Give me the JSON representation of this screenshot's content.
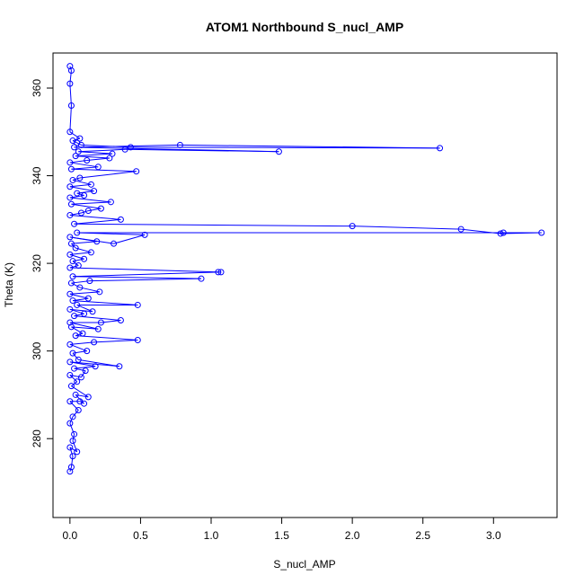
{
  "chart_data": {
    "type": "line",
    "title": "ATOM1 Northbound S_nucl_AMP",
    "xlabel": "S_nucl_AMP",
    "ylabel": "Theta (K)",
    "xlim": [
      -0.12,
      3.45
    ],
    "ylim": [
      262,
      368
    ],
    "xticks": [
      0.0,
      0.5,
      1.0,
      1.5,
      2.0,
      2.5,
      3.0
    ],
    "xtick_labels": [
      "0.0",
      "0.5",
      "1.0",
      "1.5",
      "2.0",
      "2.5",
      "3.0"
    ],
    "yticks": [
      280,
      300,
      320,
      340,
      360
    ],
    "ytick_labels": [
      "280",
      "300",
      "320",
      "340",
      "360"
    ],
    "grid": false,
    "legend": "none",
    "series_color": "#0000ff",
    "marker": "open-circle",
    "series": [
      {
        "points": [
          [
            0.0,
            272.5
          ],
          [
            0.01,
            273.5
          ],
          [
            0.02,
            276.0
          ],
          [
            0.0,
            278.0
          ],
          [
            0.05,
            277.0
          ],
          [
            0.02,
            279.5
          ],
          [
            0.03,
            281.0
          ],
          [
            0.0,
            283.5
          ],
          [
            0.02,
            285.0
          ],
          [
            0.06,
            286.5
          ],
          [
            0.0,
            288.5
          ],
          [
            0.07,
            288.5
          ],
          [
            0.1,
            288.0
          ],
          [
            0.04,
            290.0
          ],
          [
            0.13,
            289.5
          ],
          [
            0.01,
            292.0
          ],
          [
            0.05,
            293.0
          ],
          [
            0.0,
            294.5
          ],
          [
            0.08,
            294.0
          ],
          [
            0.11,
            295.5
          ],
          [
            0.03,
            296.0
          ],
          [
            0.18,
            296.5
          ],
          [
            0.0,
            297.5
          ],
          [
            0.35,
            296.5
          ],
          [
            0.06,
            298.0
          ],
          [
            0.02,
            299.5
          ],
          [
            0.12,
            300.0
          ],
          [
            0.0,
            301.5
          ],
          [
            0.17,
            302.0
          ],
          [
            0.48,
            302.5
          ],
          [
            0.04,
            303.5
          ],
          [
            0.09,
            304.0
          ],
          [
            0.01,
            305.5
          ],
          [
            0.2,
            305.0
          ],
          [
            0.0,
            306.5
          ],
          [
            0.22,
            306.5
          ],
          [
            0.36,
            307.0
          ],
          [
            0.03,
            308.0
          ],
          [
            0.1,
            308.5
          ],
          [
            0.0,
            309.5
          ],
          [
            0.16,
            309.0
          ],
          [
            0.05,
            310.5
          ],
          [
            0.48,
            310.5
          ],
          [
            0.02,
            311.5
          ],
          [
            0.13,
            312.0
          ],
          [
            0.0,
            313.0
          ],
          [
            0.21,
            313.5
          ],
          [
            0.07,
            314.5
          ],
          [
            0.01,
            315.5
          ],
          [
            0.14,
            316.0
          ],
          [
            0.93,
            316.5
          ],
          [
            0.02,
            317.0
          ],
          [
            1.05,
            318.0
          ],
          [
            1.07,
            318.0
          ],
          [
            0.0,
            319.0
          ],
          [
            0.06,
            319.5
          ],
          [
            0.02,
            320.5
          ],
          [
            0.1,
            321.0
          ],
          [
            0.0,
            322.0
          ],
          [
            0.15,
            322.5
          ],
          [
            0.04,
            323.5
          ],
          [
            0.01,
            324.5
          ],
          [
            0.19,
            325.0
          ],
          [
            0.0,
            326.0
          ],
          [
            0.31,
            324.5
          ],
          [
            0.53,
            326.5
          ],
          [
            0.05,
            327.0
          ],
          [
            3.07,
            327.0
          ],
          [
            3.34,
            327.0
          ],
          [
            3.05,
            326.8
          ],
          [
            2.77,
            327.8
          ],
          [
            2.0,
            328.5
          ],
          [
            0.03,
            329.0
          ],
          [
            0.36,
            330.0
          ],
          [
            0.0,
            331.0
          ],
          [
            0.08,
            331.5
          ],
          [
            0.13,
            332.0
          ],
          [
            0.22,
            332.5
          ],
          [
            0.01,
            333.5
          ],
          [
            0.29,
            334.0
          ],
          [
            0.0,
            335.0
          ],
          [
            0.1,
            335.5
          ],
          [
            0.05,
            336.0
          ],
          [
            0.17,
            336.5
          ],
          [
            0.0,
            337.5
          ],
          [
            0.15,
            338.0
          ],
          [
            0.02,
            339.0
          ],
          [
            0.07,
            339.5
          ],
          [
            0.47,
            341.0
          ],
          [
            0.01,
            341.5
          ],
          [
            0.2,
            342.0
          ],
          [
            0.0,
            343.0
          ],
          [
            0.12,
            343.5
          ],
          [
            0.28,
            344.0
          ],
          [
            0.04,
            344.5
          ],
          [
            0.3,
            345.0
          ],
          [
            0.06,
            345.5
          ],
          [
            0.39,
            346.0
          ],
          [
            1.48,
            345.5
          ],
          [
            0.03,
            346.5
          ],
          [
            0.78,
            347.0
          ],
          [
            2.62,
            346.3
          ],
          [
            0.43,
            346.5
          ],
          [
            0.08,
            347.0
          ],
          [
            0.05,
            347.5
          ],
          [
            0.02,
            348.0
          ],
          [
            0.07,
            348.5
          ],
          [
            0.0,
            350.0
          ],
          [
            0.01,
            356.0
          ],
          [
            0.0,
            361.0
          ],
          [
            0.01,
            364.0
          ],
          [
            0.0,
            365.0
          ]
        ]
      }
    ]
  }
}
